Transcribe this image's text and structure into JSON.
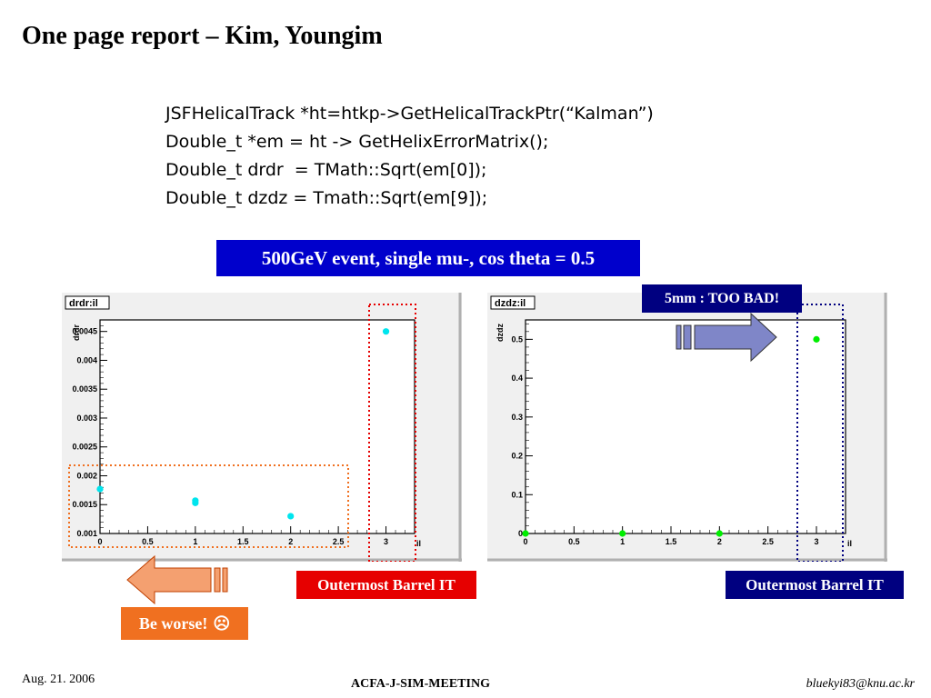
{
  "slide": {
    "title": "One page report – Kim, Youngim",
    "code_lines": [
      "JSFHelicalTrack *ht=htkp->GetHelicalTrackPtr(“Kalman”)",
      "Double_t *em = ht -> GetHelixErrorMatrix();",
      "Double_t drdr  = TMath::Sqrt(em[0]);",
      "Double_t dzdz = Tmath::Sqrt(em[9]);"
    ],
    "banner": "500GeV event, single mu-, cos theta = 0.5",
    "callout_right_top": "5mm : TOO BAD!",
    "callout_left": "Outermost Barrel IT",
    "callout_right": "Outermost Barrel IT",
    "callout_orange": "Be worse!",
    "callout_orange_icon": "sad-face-icon",
    "footer_date": "Aug. 21. 2006",
    "footer_meeting": "ACFA-J-SIM-MEETING",
    "footer_email": "bluekyi83@knu.ac.kr"
  },
  "colors": {
    "banner": "#0000cc",
    "red_box": "#e60000",
    "navy_box": "#000080",
    "orange_box": "#f07020",
    "left_points": "#00e5ee",
    "right_points": "#00ee00",
    "arrow_orange": "#f4a070",
    "arrow_blue": "#7f86c8"
  },
  "chart_data": [
    {
      "type": "scatter",
      "title": "drdr:il",
      "xlabel": "il",
      "ylabel": "drdr",
      "xlim": [
        0,
        3.3
      ],
      "ylim": [
        0.001,
        0.0047
      ],
      "xticks": [
        "0",
        "0.5",
        "1",
        "1.5",
        "2",
        "2.5",
        "3"
      ],
      "yticks": [
        "0.001",
        "0.0015",
        "0.002",
        "0.0025",
        "0.003",
        "0.0035",
        "0.004",
        "0.0045"
      ],
      "points": [
        {
          "x": 0,
          "y": 0.00177
        },
        {
          "x": 1,
          "y": 0.00153
        },
        {
          "x": 1,
          "y": 0.00157
        },
        {
          "x": 2,
          "y": 0.0013
        },
        {
          "x": 3,
          "y": 0.0045
        }
      ]
    },
    {
      "type": "scatter",
      "title": "dzdz:il",
      "xlabel": "il",
      "ylabel": "dzdz",
      "xlim": [
        0,
        3.3
      ],
      "ylim": [
        0,
        0.55
      ],
      "xticks": [
        "0",
        "0.5",
        "1",
        "1.5",
        "2",
        "2.5",
        "3"
      ],
      "yticks": [
        "0",
        "0.1",
        "0.2",
        "0.3",
        "0.4",
        "0.5"
      ],
      "points": [
        {
          "x": 0,
          "y": 0.0
        },
        {
          "x": 1,
          "y": 0.0
        },
        {
          "x": 2,
          "y": 0.0
        },
        {
          "x": 3,
          "y": 0.5
        }
      ]
    }
  ]
}
